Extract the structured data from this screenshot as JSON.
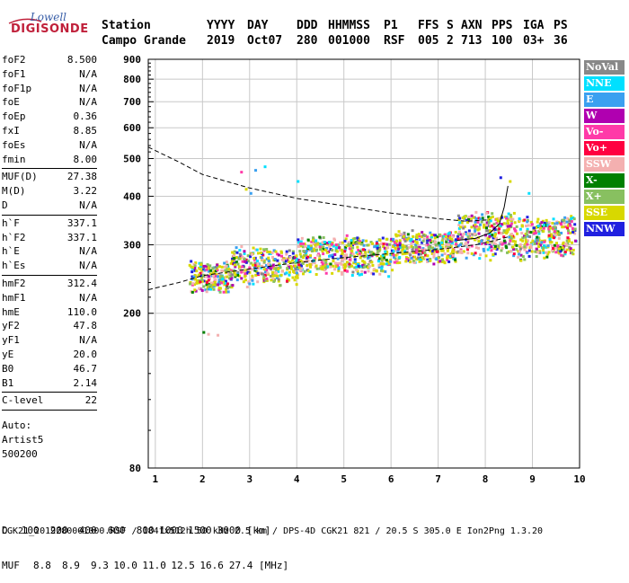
{
  "logo": {
    "line1": "Lowell",
    "line2": "DIGISONDE"
  },
  "header": {
    "labels": [
      "Station",
      "YYYY",
      "DAY",
      "DDD",
      "HHMMSS",
      "P1",
      "FFS",
      "S",
      "AXN",
      "PPS",
      "IGA",
      "PS"
    ],
    "values": [
      "Campo Grande",
      "2019",
      "Oct07",
      "280",
      "001000",
      "RSF",
      "005",
      "2",
      "713",
      "100",
      "03+",
      "36"
    ]
  },
  "params_group1": [
    {
      "name": "foF2",
      "value": "8.500"
    },
    {
      "name": "foF1",
      "value": "N/A"
    },
    {
      "name": "foF1p",
      "value": "N/A"
    },
    {
      "name": "foE",
      "value": "N/A"
    },
    {
      "name": "foEp",
      "value": "0.36"
    },
    {
      "name": "fxI",
      "value": "8.85"
    },
    {
      "name": "foEs",
      "value": "N/A"
    },
    {
      "name": "fmin",
      "value": "8.00"
    }
  ],
  "params_group2": [
    {
      "name": "MUF(D)",
      "value": "27.38"
    },
    {
      "name": "M(D)",
      "value": "3.22"
    },
    {
      "name": "D",
      "value": "N/A"
    }
  ],
  "params_group3": [
    {
      "name": "h`F",
      "value": "337.1"
    },
    {
      "name": "h`F2",
      "value": "337.1"
    },
    {
      "name": "h`E",
      "value": "N/A"
    },
    {
      "name": "h`Es",
      "value": "N/A"
    }
  ],
  "params_group4": [
    {
      "name": "hmF2",
      "value": "312.4"
    },
    {
      "name": "hmF1",
      "value": "N/A"
    },
    {
      "name": "hmE",
      "value": "110.0"
    },
    {
      "name": "yF2",
      "value": "47.8"
    },
    {
      "name": "yF1",
      "value": "N/A"
    },
    {
      "name": "yE",
      "value": "20.0"
    },
    {
      "name": "B0",
      "value": "46.7"
    },
    {
      "name": "B1",
      "value": "2.14"
    }
  ],
  "params_group5": [
    {
      "name": "C-level",
      "value": "22"
    }
  ],
  "notes": {
    "auto": "Auto:",
    "artist": "Artist5",
    "code": "500200"
  },
  "legend": [
    {
      "label": "NoVal",
      "color": "#888888"
    },
    {
      "label": "NNE",
      "color": "#00e0ff"
    },
    {
      "label": "E",
      "color": "#3aa0f0"
    },
    {
      "label": "W",
      "color": "#b000b0"
    },
    {
      "label": "Vo-",
      "color": "#ff3aa8"
    },
    {
      "label": "Vo+",
      "color": "#ff0040"
    },
    {
      "label": "SSW",
      "color": "#f4b0b0"
    },
    {
      "label": "X-",
      "color": "#008000"
    },
    {
      "label": "X+",
      "color": "#88c060"
    },
    {
      "label": "SSE",
      "color": "#d8d800"
    },
    {
      "label": "NNW",
      "color": "#2020e0"
    }
  ],
  "footer": {
    "d_label": "D",
    "d_values": [
      "100",
      "200",
      "400",
      "600",
      "800",
      "1000",
      "1500",
      "3000 [km]"
    ],
    "muf_label": "MUF",
    "muf_values": [
      "8.8",
      "8.9",
      "9.3",
      "10.0",
      "11.0",
      "12.5",
      "16.6",
      "27.4 [MHz]"
    ],
    "file_line": "CGK21_2019280001000.RSF / 184fx512h 50 kHz 2.5 km / DPS-4D CGK21 821 / 20.5 S 305.0 E Ion2Png 1.3.20"
  },
  "chart_data": {
    "type": "scatter",
    "xlim": [
      0.85,
      10
    ],
    "ylim": [
      80,
      900
    ],
    "yscale": "log",
    "x_ticks": [
      1,
      2,
      3,
      4,
      5,
      6,
      7,
      8,
      9,
      10
    ],
    "y_ticks": [
      80,
      200,
      300,
      400,
      500,
      600,
      700,
      800,
      900
    ],
    "grid": true,
    "trace_bands": [
      {
        "fmin": 1.7,
        "fmax": 2.6,
        "hlow": 225,
        "hhigh": 275
      },
      {
        "fmin": 2.6,
        "fmax": 4.0,
        "hlow": 235,
        "hhigh": 300
      },
      {
        "fmin": 4.0,
        "fmax": 6.0,
        "hlow": 250,
        "hhigh": 320
      },
      {
        "fmin": 6.0,
        "fmax": 7.4,
        "hlow": 265,
        "hhigh": 330
      },
      {
        "fmin": 7.4,
        "fmax": 8.6,
        "hlow": 275,
        "hhigh": 370
      },
      {
        "fmin": 8.6,
        "fmax": 9.9,
        "hlow": 275,
        "hhigh": 360
      }
    ],
    "outliers": [
      {
        "f": 2.0,
        "h": 180
      },
      {
        "f": 2.1,
        "h": 178
      },
      {
        "f": 2.3,
        "h": 177
      },
      {
        "f": 2.8,
        "h": 465
      },
      {
        "f": 2.9,
        "h": 420
      },
      {
        "f": 3.1,
        "h": 470
      },
      {
        "f": 3.3,
        "h": 480
      },
      {
        "f": 3.0,
        "h": 410
      },
      {
        "f": 4.0,
        "h": 440
      },
      {
        "f": 8.3,
        "h": 450
      },
      {
        "f": 8.5,
        "h": 440
      },
      {
        "f": 8.9,
        "h": 410
      }
    ],
    "series": [
      {
        "name": "dashed_profile_low",
        "style": "dashed",
        "points": [
          [
            0.85,
            230
          ],
          [
            1.5,
            240
          ],
          [
            2.0,
            250
          ],
          [
            3.0,
            260
          ],
          [
            4.0,
            270
          ],
          [
            5.0,
            278
          ],
          [
            6.0,
            285
          ],
          [
            7.0,
            292
          ],
          [
            7.8,
            300
          ],
          [
            8.3,
            310
          ],
          [
            8.5,
            315
          ]
        ]
      },
      {
        "name": "dashed_profile_high",
        "style": "dashed",
        "points": [
          [
            0.85,
            535
          ],
          [
            1.5,
            490
          ],
          [
            2.0,
            455
          ],
          [
            3.0,
            420
          ],
          [
            4.0,
            395
          ],
          [
            5.0,
            378
          ],
          [
            6.0,
            362
          ],
          [
            7.0,
            350
          ],
          [
            7.6,
            345
          ],
          [
            8.1,
            348
          ]
        ]
      },
      {
        "name": "solid_trace",
        "style": "solid",
        "points": [
          [
            7.4,
            308
          ],
          [
            7.8,
            312
          ],
          [
            8.1,
            322
          ],
          [
            8.3,
            340
          ],
          [
            8.4,
            375
          ],
          [
            8.48,
            425
          ]
        ]
      }
    ]
  }
}
